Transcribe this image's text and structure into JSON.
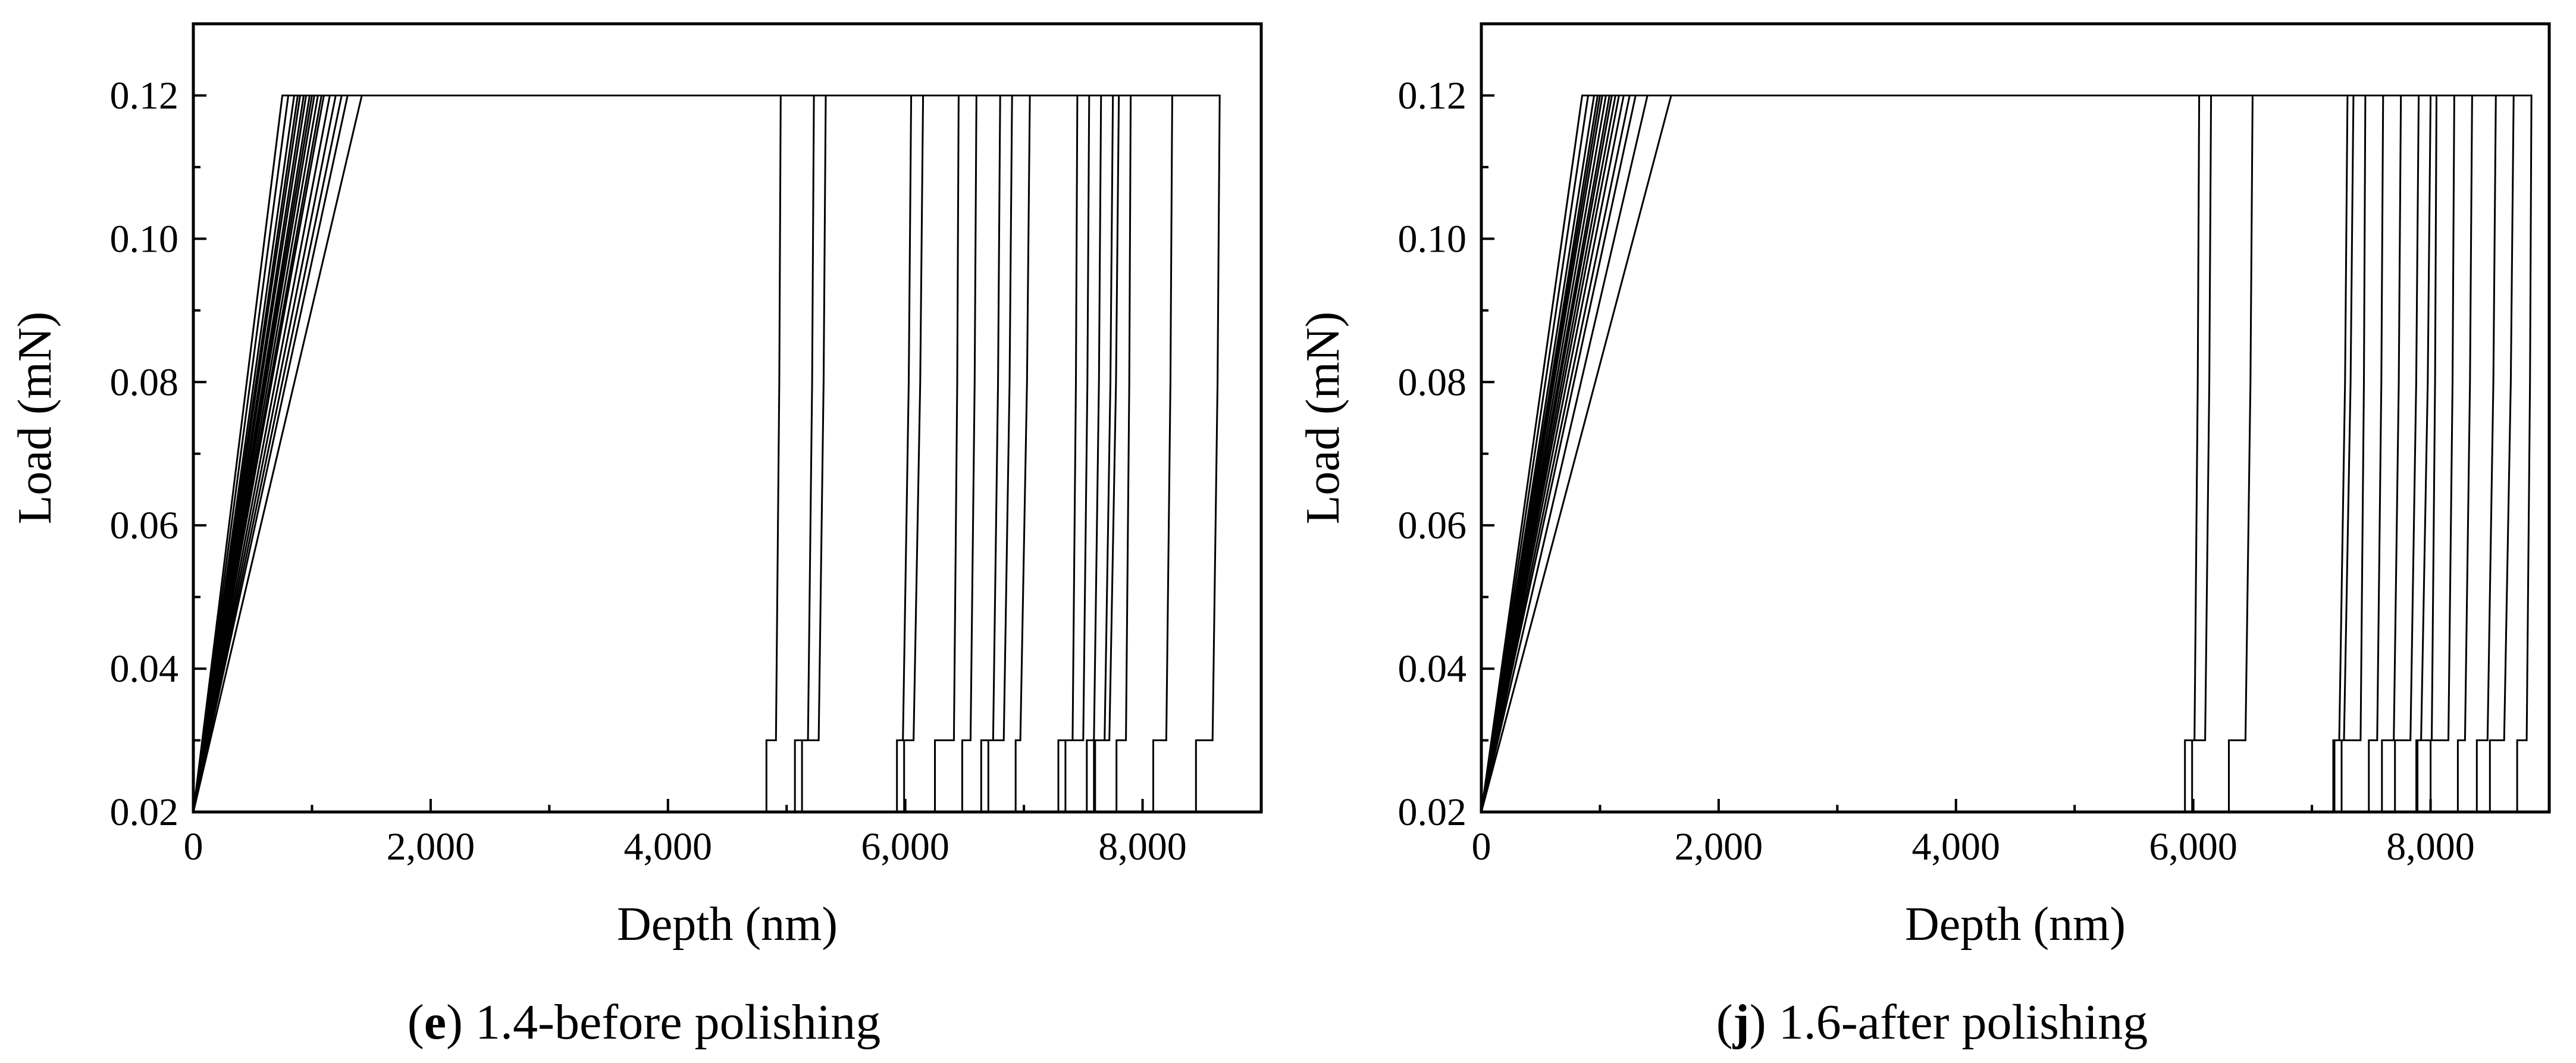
{
  "chart_data": [
    {
      "type": "line",
      "caption": {
        "open": "(",
        "letter": "e",
        "text": ") 1.4-before polishing"
      },
      "xlabel": "Depth (nm)",
      "ylabel": "Load (mN)",
      "xlim": [
        0,
        9000
      ],
      "ylim": [
        0.02,
        0.13
      ],
      "x_ticks": [
        0,
        2000,
        4000,
        6000,
        8000
      ],
      "x_tick_labels": [
        "0",
        "2,000",
        "4,000",
        "6,000",
        "8,000"
      ],
      "y_ticks": [
        0.02,
        0.04,
        0.06,
        0.08,
        0.1,
        0.12
      ],
      "y_tick_labels": [
        "0.02",
        "0.04",
        "0.06",
        "0.08",
        "0.10",
        "0.12"
      ],
      "grid": false,
      "line_color": "#000000",
      "series": [
        {
          "loading_depth": 750,
          "max_depth": 4950
        },
        {
          "loading_depth": 800,
          "max_depth": 5230
        },
        {
          "loading_depth": 850,
          "max_depth": 5330
        },
        {
          "loading_depth": 880,
          "max_depth": 6050
        },
        {
          "loading_depth": 900,
          "max_depth": 6150
        },
        {
          "loading_depth": 930,
          "max_depth": 6450
        },
        {
          "loading_depth": 950,
          "max_depth": 6600
        },
        {
          "loading_depth": 980,
          "max_depth": 6800
        },
        {
          "loading_depth": 1000,
          "max_depth": 6900
        },
        {
          "loading_depth": 1020,
          "max_depth": 7050
        },
        {
          "loading_depth": 1050,
          "max_depth": 7450
        },
        {
          "loading_depth": 1080,
          "max_depth": 7550
        },
        {
          "loading_depth": 1100,
          "max_depth": 7650
        },
        {
          "loading_depth": 1150,
          "max_depth": 7750
        },
        {
          "loading_depth": 1200,
          "max_depth": 7800
        },
        {
          "loading_depth": 1250,
          "max_depth": 7900
        },
        {
          "loading_depth": 1300,
          "max_depth": 8250
        },
        {
          "loading_depth": 1420,
          "max_depth": 8650
        }
      ]
    },
    {
      "type": "line",
      "caption": {
        "open": "(",
        "letter": "j",
        "text": ") 1.6-after polishing"
      },
      "xlabel": "Depth (nm)",
      "ylabel": "Load (mN)",
      "xlim": [
        0,
        9000
      ],
      "ylim": [
        0.02,
        0.13
      ],
      "x_ticks": [
        0,
        2000,
        4000,
        6000,
        8000
      ],
      "x_tick_labels": [
        "0",
        "2,000",
        "4,000",
        "6,000",
        "8,000"
      ],
      "y_ticks": [
        0.02,
        0.04,
        0.06,
        0.08,
        0.1,
        0.12
      ],
      "y_tick_labels": [
        "0.02",
        "0.04",
        "0.06",
        "0.08",
        "0.10",
        "0.12"
      ],
      "grid": false,
      "line_color": "#000000",
      "series": [
        {
          "loading_depth": 850,
          "max_depth": 6050
        },
        {
          "loading_depth": 900,
          "max_depth": 6150
        },
        {
          "loading_depth": 950,
          "max_depth": 6500
        },
        {
          "loading_depth": 980,
          "max_depth": 7300
        },
        {
          "loading_depth": 1000,
          "max_depth": 7350
        },
        {
          "loading_depth": 1020,
          "max_depth": 7450
        },
        {
          "loading_depth": 1050,
          "max_depth": 7600
        },
        {
          "loading_depth": 1080,
          "max_depth": 7750
        },
        {
          "loading_depth": 1100,
          "max_depth": 7900
        },
        {
          "loading_depth": 1130,
          "max_depth": 8000
        },
        {
          "loading_depth": 1160,
          "max_depth": 8050
        },
        {
          "loading_depth": 1200,
          "max_depth": 8200
        },
        {
          "loading_depth": 1250,
          "max_depth": 8350
        },
        {
          "loading_depth": 1300,
          "max_depth": 8550
        },
        {
          "loading_depth": 1400,
          "max_depth": 8700
        },
        {
          "loading_depth": 1600,
          "max_depth": 8850
        }
      ]
    }
  ]
}
